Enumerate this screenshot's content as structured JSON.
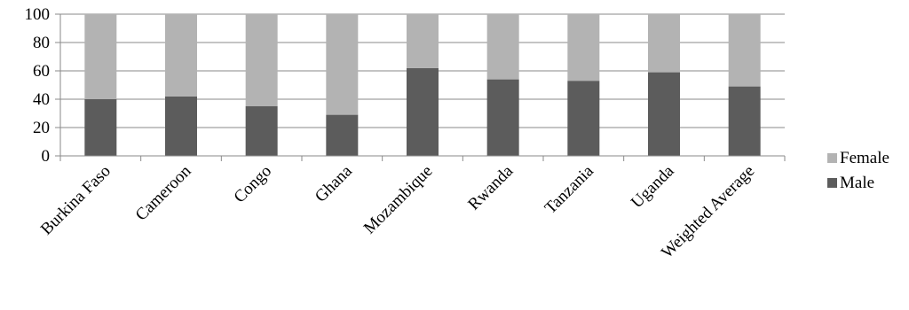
{
  "chart_data": {
    "type": "bar",
    "stacked": true,
    "categories": [
      "Burkina Faso",
      "Cameroon",
      "Congo",
      "Ghana",
      "Mozambique",
      "Rwanda",
      "Tanzania",
      "Uganda",
      "Weighted Average"
    ],
    "series": [
      {
        "name": "Male",
        "color": "#5c5c5c",
        "values": [
          40,
          42,
          35,
          29,
          62,
          54,
          53,
          59,
          49
        ]
      },
      {
        "name": "Female",
        "color": "#b3b3b3",
        "values": [
          60,
          58,
          65,
          71,
          38,
          46,
          47,
          41,
          51
        ]
      }
    ],
    "y_ticks": [
      "0",
      "20",
      "40",
      "60",
      "80",
      "100"
    ],
    "ylim": [
      0,
      100
    ],
    "grid": true,
    "legend_position": "right",
    "legend": [
      {
        "name": "Female",
        "color": "#b3b3b3"
      },
      {
        "name": "Male",
        "color": "#5c5c5c"
      }
    ]
  }
}
